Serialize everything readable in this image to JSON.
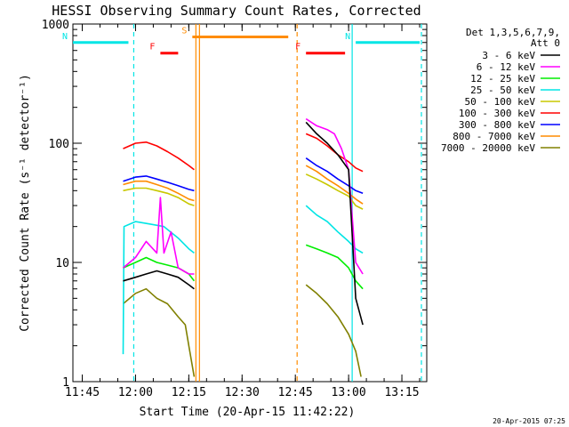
{
  "chart_data": {
    "type": "line",
    "title": "HESSI Observing Summary Count Rates, Corrected",
    "xlabel": "Start Time (20-Apr-15 11:42:22)",
    "ylabel": "Corrected Count Rate (s⁻¹ detector⁻¹)",
    "ylog": true,
    "ylim": [
      1,
      1000
    ],
    "xlim": [
      "11:42:22",
      "13:22:00"
    ],
    "xticks": [
      "11:45",
      "12:00",
      "12:15",
      "12:30",
      "12:45",
      "13:00",
      "13:15"
    ],
    "yticks": [
      "1",
      "10",
      "100",
      "1000"
    ],
    "timestamp": "20-Apr-2015 07:25",
    "legend_header": [
      "Det 1,3,5,6,7,9,",
      "Att 0"
    ],
    "legend_position": "right",
    "flags": [
      {
        "label": "N",
        "color": "#00e5e5",
        "start": "11:42:22",
        "end": "11:58:00",
        "level": 700
      },
      {
        "label": "N",
        "color": "#00e5e5",
        "start": "13:02:00",
        "end": "13:20:00",
        "level": 700
      },
      {
        "label": "F",
        "color": "#ff0000",
        "start": "12:07:00",
        "end": "12:12:00",
        "level": 570
      },
      {
        "label": "F",
        "color": "#ff0000",
        "start": "12:48:00",
        "end": "12:59:00",
        "level": 570
      },
      {
        "label": "S",
        "color": "#ff8c00",
        "start": "12:16:00",
        "end": "12:43:00",
        "level": 780
      }
    ],
    "vlines": [
      {
        "time": "11:59:30",
        "color": "#00e5e5",
        "style": "dashed"
      },
      {
        "time": "13:20:30",
        "color": "#00e5e5",
        "style": "dashed"
      },
      {
        "time": "13:01:00",
        "color": "#00e5e5",
        "style": "solid"
      },
      {
        "time": "12:17:00",
        "color": "#ff8c00",
        "style": "solid"
      },
      {
        "time": "12:18:00",
        "color": "#ff8c00",
        "style": "solid"
      },
      {
        "time": "12:45:30",
        "color": "#ff8c00",
        "style": "dashed"
      }
    ],
    "series": [
      {
        "name": "3 - 6 keV",
        "color": "#000000",
        "segments": [
          {
            "x": [
              "11:56:30",
              "12:00:00",
              "12:03:00",
              "12:06:00",
              "12:09:00",
              "12:12:00",
              "12:15:00",
              "12:16:30"
            ],
            "y": [
              7,
              7.5,
              8,
              8.5,
              8,
              7.5,
              6.5,
              6
            ]
          },
          {
            "x": [
              "12:48:00",
              "12:51:00",
              "12:54:00",
              "12:57:00",
              "13:00:00",
              "13:02:00",
              "13:04:00"
            ],
            "y": [
              150,
              120,
              100,
              80,
              60,
              5,
              3
            ]
          }
        ]
      },
      {
        "name": "6 - 12 keV",
        "color": "#ff00ff",
        "segments": [
          {
            "x": [
              "11:56:30",
              "12:00:00",
              "12:03:00",
              "12:06:00",
              "12:07:00",
              "12:08:00",
              "12:10:00",
              "12:12:00",
              "12:15:00",
              "12:16:30"
            ],
            "y": [
              9,
              11,
              15,
              12,
              35,
              12,
              18,
              9,
              8,
              8
            ]
          },
          {
            "x": [
              "12:48:00",
              "12:51:00",
              "12:54:00",
              "12:56:00",
              "12:58:00",
              "13:00:00",
              "13:02:00",
              "13:04:00"
            ],
            "y": [
              160,
              140,
              130,
              120,
              90,
              60,
              10,
              8
            ]
          }
        ]
      },
      {
        "name": "12 - 25 keV",
        "color": "#00ee00",
        "segments": [
          {
            "x": [
              "11:56:30",
              "12:00:00",
              "12:03:00",
              "12:06:00",
              "12:09:00",
              "12:12:00",
              "12:15:00",
              "12:16:30"
            ],
            "y": [
              9,
              10,
              11,
              10,
              9.5,
              9,
              8,
              7
            ]
          },
          {
            "x": [
              "12:48:00",
              "12:51:00",
              "12:54:00",
              "12:57:00",
              "13:00:00",
              "13:02:00",
              "13:04:00"
            ],
            "y": [
              14,
              13,
              12,
              11,
              9,
              7,
              6
            ]
          }
        ]
      },
      {
        "name": "25 - 50 keV",
        "color": "#00e5e5",
        "segments": [
          {
            "x": [
              "11:56:30",
              "11:56:45",
              "12:00:00",
              "12:04:00",
              "12:08:00",
              "12:12:00",
              "12:15:00",
              "12:16:30"
            ],
            "y": [
              1.7,
              20,
              22,
              21,
              20,
              16,
              13,
              12
            ]
          },
          {
            "x": [
              "12:48:00",
              "12:51:00",
              "12:54:00",
              "12:57:00",
              "13:00:00",
              "13:02:00",
              "13:04:00"
            ],
            "y": [
              30,
              25,
              22,
              18,
              15,
              13,
              12
            ]
          }
        ]
      },
      {
        "name": "50 - 100 keV",
        "color": "#c8c800",
        "segments": [
          {
            "x": [
              "11:56:30",
              "12:00:00",
              "12:03:00",
              "12:06:00",
              "12:09:00",
              "12:12:00",
              "12:15:00",
              "12:16:30"
            ],
            "y": [
              40,
              42,
              42,
              40,
              38,
              35,
              31,
              30
            ]
          },
          {
            "x": [
              "12:48:00",
              "12:51:00",
              "12:54:00",
              "12:57:00",
              "13:00:00",
              "13:02:00",
              "13:04:00"
            ],
            "y": [
              55,
              50,
              45,
              40,
              36,
              30,
              28
            ]
          }
        ]
      },
      {
        "name": "100 - 300 keV",
        "color": "#ff0000",
        "segments": [
          {
            "x": [
              "11:56:30",
              "12:00:00",
              "12:03:00",
              "12:06:00",
              "12:09:00",
              "12:12:00",
              "12:15:00",
              "12:16:30"
            ],
            "y": [
              90,
              100,
              102,
              95,
              85,
              75,
              65,
              60
            ]
          },
          {
            "x": [
              "12:48:00",
              "12:51:00",
              "12:54:00",
              "12:57:00",
              "13:00:00",
              "13:02:00",
              "13:04:00"
            ],
            "y": [
              120,
              110,
              95,
              80,
              70,
              62,
              58
            ]
          }
        ]
      },
      {
        "name": "300 - 800 keV",
        "color": "#0000ff",
        "segments": [
          {
            "x": [
              "11:56:30",
              "12:00:00",
              "12:03:00",
              "12:06:00",
              "12:09:00",
              "12:12:00",
              "12:15:00",
              "12:16:30"
            ],
            "y": [
              48,
              52,
              53,
              50,
              47,
              44,
              41,
              40
            ]
          },
          {
            "x": [
              "12:48:00",
              "12:51:00",
              "12:54:00",
              "12:57:00",
              "13:00:00",
              "13:02:00",
              "13:04:00"
            ],
            "y": [
              75,
              65,
              58,
              50,
              44,
              40,
              38
            ]
          }
        ]
      },
      {
        "name": "800 - 7000 keV",
        "color": "#ff8c00",
        "segments": [
          {
            "x": [
              "11:56:30",
              "12:00:00",
              "12:03:00",
              "12:06:00",
              "12:09:00",
              "12:12:00",
              "12:15:00",
              "12:16:30"
            ],
            "y": [
              45,
              48,
              48,
              45,
              42,
              38,
              34,
              33
            ]
          },
          {
            "x": [
              "12:48:00",
              "12:51:00",
              "12:54:00",
              "12:57:00",
              "13:00:00",
              "13:02:00",
              "13:04:00"
            ],
            "y": [
              65,
              58,
              50,
              44,
              38,
              34,
              31
            ]
          }
        ]
      },
      {
        "name": "7000 - 20000 keV",
        "color": "#808000",
        "segments": [
          {
            "x": [
              "11:56:30",
              "12:00:00",
              "12:03:00",
              "12:06:00",
              "12:09:00",
              "12:12:00",
              "12:14:00",
              "12:15:00",
              "12:16:30"
            ],
            "y": [
              4.5,
              5.5,
              6,
              5,
              4.5,
              3.5,
              3,
              2,
              1.1
            ]
          },
          {
            "x": [
              "12:48:00",
              "12:51:00",
              "12:54:00",
              "12:57:00",
              "13:00:00",
              "13:02:00",
              "13:03:30"
            ],
            "y": [
              6.5,
              5.5,
              4.5,
              3.5,
              2.5,
              1.8,
              1.1
            ]
          }
        ]
      }
    ]
  }
}
